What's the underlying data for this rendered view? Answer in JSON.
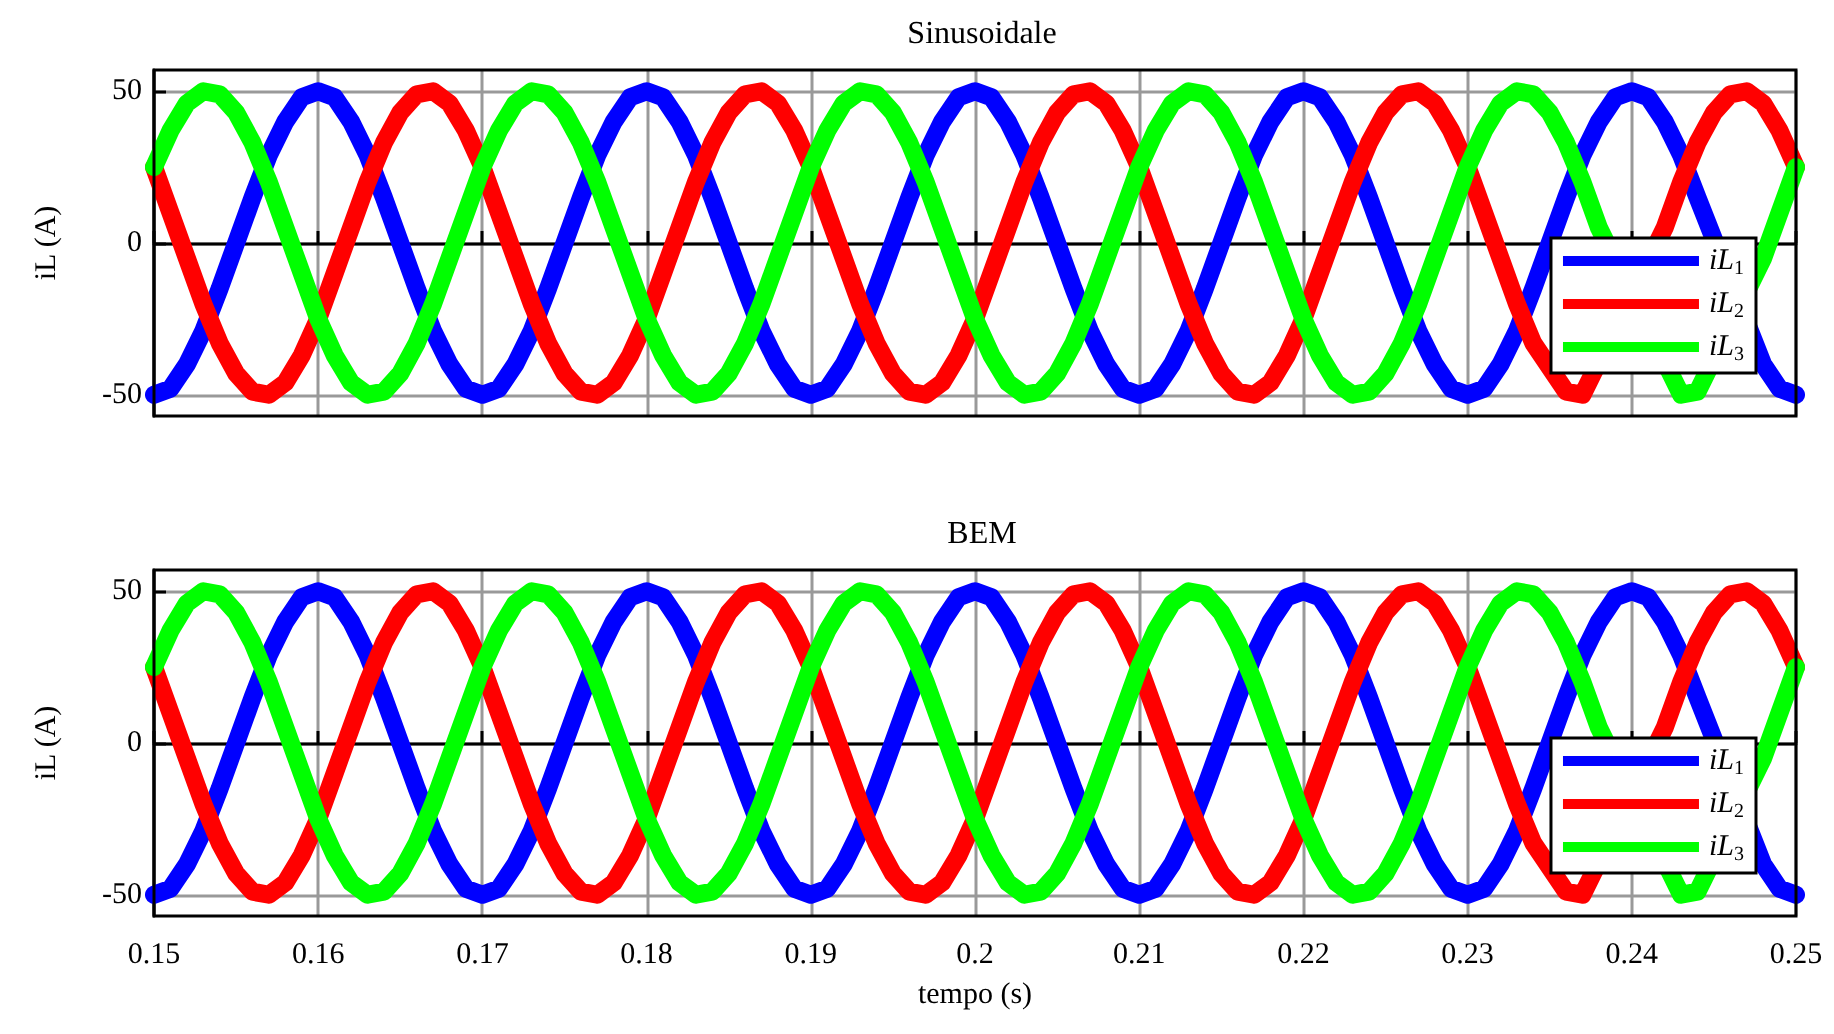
{
  "chart_data": [
    {
      "type": "line",
      "title": "Sinusoidale",
      "ylabel": "iL (A)",
      "xlim": [
        0.15,
        0.25
      ],
      "xticks": [
        0.15,
        0.16,
        0.17,
        0.18,
        0.19,
        0.2,
        0.21,
        0.22,
        0.23,
        0.24,
        0.25
      ],
      "ylim": [
        -57,
        57
      ],
      "yticks": [
        -50,
        0,
        50
      ],
      "grid": true,
      "legend": "bottom right",
      "tick_labels": "y",
      "marker": "none",
      "line_style": "solid",
      "x": [
        0.15,
        0.151,
        0.152,
        0.153,
        0.154,
        0.155,
        0.156,
        0.157,
        0.158,
        0.159,
        0.16,
        0.161,
        0.162,
        0.163,
        0.164,
        0.165,
        0.166,
        0.167,
        0.168,
        0.169,
        0.17,
        0.171,
        0.172,
        0.173,
        0.174,
        0.175,
        0.176,
        0.177,
        0.178,
        0.179,
        0.18,
        0.181,
        0.182,
        0.183,
        0.184,
        0.185,
        0.186,
        0.187,
        0.188,
        0.189,
        0.19,
        0.191,
        0.192,
        0.193,
        0.194,
        0.195,
        0.196,
        0.197,
        0.198,
        0.199,
        0.2,
        0.201,
        0.202,
        0.203,
        0.204,
        0.205,
        0.206,
        0.207,
        0.208,
        0.209,
        0.21,
        0.211,
        0.212,
        0.213,
        0.214,
        0.215,
        0.216,
        0.217,
        0.218,
        0.219,
        0.22,
        0.221,
        0.222,
        0.223,
        0.224,
        0.225,
        0.226,
        0.227,
        0.228,
        0.229,
        0.23,
        0.231,
        0.232,
        0.233,
        0.234,
        0.235,
        0.236,
        0.237,
        0.238,
        0.239,
        0.24,
        0.241,
        0.242,
        0.243,
        0.244,
        0.245,
        0.246,
        0.247,
        0.248,
        0.249,
        0.25
      ],
      "series": [
        {
          "name": "iL$_{1}$",
          "color": "#0000ff",
          "values": [
            -50,
            -48,
            -40,
            -29,
            -15,
            0,
            15,
            29,
            40,
            48,
            50,
            48,
            40,
            29,
            15,
            0,
            -15,
            -29,
            -40,
            -48,
            -50,
            -48,
            -40,
            -29,
            -15,
            0,
            15,
            29,
            40,
            48,
            50,
            48,
            40,
            29,
            15,
            0,
            -15,
            -29,
            -40,
            -48,
            -50,
            -48,
            -40,
            -29,
            -15,
            0,
            15,
            29,
            40,
            48,
            50,
            48,
            40,
            29,
            15,
            0,
            -15,
            -29,
            -40,
            -48,
            -50,
            -48,
            -40,
            -29,
            -15,
            0,
            15,
            29,
            40,
            48,
            50,
            48,
            40,
            29,
            15,
            0,
            -15,
            -29,
            -40,
            -48,
            -50,
            -48,
            -40,
            -29,
            -15,
            0,
            15,
            29,
            40,
            48,
            50,
            48,
            40,
            29,
            15,
            null,
            null,
            null,
            -40,
            -48,
            -50
          ]
        },
        {
          "name": "iL$_{2}$",
          "color": "#ff0000",
          "values": [
            25,
            10,
            -5,
            -20,
            -33,
            -43,
            -49,
            -50,
            -46,
            -37,
            -25,
            -10,
            5,
            20,
            33,
            43,
            49,
            50,
            46,
            37,
            25,
            10,
            -5,
            -20,
            -33,
            -43,
            -49,
            -50,
            -46,
            -37,
            -25,
            -10,
            5,
            20,
            33,
            43,
            49,
            50,
            46,
            37,
            25,
            10,
            -5,
            -20,
            -33,
            -43,
            -49,
            -50,
            -46,
            -37,
            -25,
            -10,
            5,
            20,
            33,
            43,
            49,
            50,
            46,
            37,
            25,
            10,
            -5,
            -20,
            -33,
            -43,
            -49,
            -50,
            -46,
            -37,
            -25,
            -10,
            5,
            20,
            33,
            43,
            49,
            50,
            46,
            37,
            25,
            10,
            -5,
            -20,
            -33,
            null,
            -49,
            -50,
            null,
            null,
            null,
            null,
            5,
            20,
            33,
            43,
            49,
            50,
            46,
            37,
            25
          ]
        },
        {
          "name": "iL$_{3}$",
          "color": "#00ff00",
          "values": [
            25,
            37,
            46,
            50,
            49,
            43,
            33,
            20,
            5,
            -10,
            -25,
            -37,
            -46,
            -50,
            -49,
            -43,
            -33,
            -20,
            -5,
            10,
            25,
            37,
            46,
            50,
            49,
            43,
            33,
            20,
            5,
            -10,
            -25,
            -37,
            -46,
            -50,
            -49,
            -43,
            -33,
            -20,
            -5,
            10,
            25,
            37,
            46,
            50,
            49,
            43,
            33,
            20,
            5,
            -10,
            -25,
            -37,
            -46,
            -50,
            -49,
            -43,
            -33,
            -20,
            -5,
            10,
            25,
            37,
            46,
            50,
            49,
            43,
            33,
            20,
            5,
            -10,
            -25,
            -37,
            -46,
            -50,
            -49,
            -43,
            -33,
            -20,
            -5,
            10,
            25,
            37,
            46,
            50,
            49,
            43,
            33,
            20,
            5,
            null,
            null,
            null,
            null,
            -50,
            -49,
            null,
            null,
            null,
            -5,
            10,
            25
          ]
        }
      ]
    },
    {
      "type": "line",
      "title": "BEM",
      "xlabel": "tempo (s)",
      "ylabel": "iL (A)",
      "xlim": [
        0.15,
        0.25
      ],
      "xticks": [
        0.15,
        0.16,
        0.17,
        0.18,
        0.19,
        0.2,
        0.21,
        0.22,
        0.23,
        0.24,
        0.25
      ],
      "ylim": [
        -57,
        57
      ],
      "yticks": [
        -50,
        0,
        50
      ],
      "grid": true,
      "legend": "bottom right",
      "marker": "none",
      "line_style": "solid",
      "x": [
        0.15,
        0.151,
        0.152,
        0.153,
        0.154,
        0.155,
        0.156,
        0.157,
        0.158,
        0.159,
        0.16,
        0.161,
        0.162,
        0.163,
        0.164,
        0.165,
        0.166,
        0.167,
        0.168,
        0.169,
        0.17,
        0.171,
        0.172,
        0.173,
        0.174,
        0.175,
        0.176,
        0.177,
        0.178,
        0.179,
        0.18,
        0.181,
        0.182,
        0.183,
        0.184,
        0.185,
        0.186,
        0.187,
        0.188,
        0.189,
        0.19,
        0.191,
        0.192,
        0.193,
        0.194,
        0.195,
        0.196,
        0.197,
        0.198,
        0.199,
        0.2,
        0.201,
        0.202,
        0.203,
        0.204,
        0.205,
        0.206,
        0.207,
        0.208,
        0.209,
        0.21,
        0.211,
        0.212,
        0.213,
        0.214,
        0.215,
        0.216,
        0.217,
        0.218,
        0.219,
        0.22,
        0.221,
        0.222,
        0.223,
        0.224,
        0.225,
        0.226,
        0.227,
        0.228,
        0.229,
        0.23,
        0.231,
        0.232,
        0.233,
        0.234,
        0.235,
        0.236,
        0.237,
        0.238,
        0.239,
        0.24,
        0.241,
        0.242,
        0.243,
        0.244,
        0.245,
        0.246,
        0.247,
        0.248,
        0.249,
        0.25
      ],
      "series": [
        {
          "name": "iL$_{1}$",
          "color": "#0000ff",
          "values": [
            -50,
            -48,
            -40,
            -29,
            -15,
            0,
            15,
            29,
            40,
            48,
            50,
            48,
            40,
            29,
            15,
            0,
            -15,
            -29,
            -40,
            -48,
            -50,
            -48,
            -40,
            -29,
            -15,
            0,
            15,
            29,
            40,
            48,
            50,
            48,
            40,
            29,
            15,
            0,
            -15,
            -29,
            -40,
            -48,
            -50,
            -48,
            -40,
            -29,
            -15,
            0,
            15,
            29,
            40,
            48,
            50,
            48,
            40,
            29,
            15,
            0,
            -15,
            -29,
            -40,
            -48,
            -50,
            -48,
            -40,
            -29,
            -15,
            0,
            15,
            29,
            40,
            48,
            50,
            48,
            40,
            29,
            15,
            0,
            -15,
            -29,
            -40,
            -48,
            -50,
            -48,
            -40,
            -29,
            -15,
            0,
            15,
            29,
            40,
            48,
            50,
            48,
            40,
            29,
            15,
            null,
            null,
            null,
            -40,
            -48,
            -50
          ]
        },
        {
          "name": "iL$_{2}$",
          "color": "#ff0000",
          "values": [
            25,
            10,
            -5,
            -20,
            -33,
            -43,
            -49,
            -50,
            -46,
            -37,
            -25,
            -10,
            5,
            20,
            33,
            43,
            49,
            50,
            46,
            37,
            25,
            10,
            -5,
            -20,
            -33,
            -43,
            -49,
            -50,
            -46,
            -37,
            -25,
            -10,
            5,
            20,
            33,
            43,
            49,
            50,
            46,
            37,
            25,
            10,
            -5,
            -20,
            -33,
            -43,
            -49,
            -50,
            -46,
            -37,
            -25,
            -10,
            5,
            20,
            33,
            43,
            49,
            50,
            46,
            37,
            25,
            10,
            -5,
            -20,
            -33,
            -43,
            -49,
            -50,
            -46,
            -37,
            -25,
            -10,
            5,
            20,
            33,
            43,
            49,
            50,
            46,
            37,
            25,
            10,
            -5,
            -20,
            -33,
            null,
            -49,
            -50,
            null,
            null,
            null,
            null,
            5,
            20,
            33,
            43,
            49,
            50,
            46,
            37,
            25
          ]
        },
        {
          "name": "iL$_{3}$",
          "color": "#00ff00",
          "values": [
            25,
            37,
            46,
            50,
            49,
            43,
            33,
            20,
            5,
            -10,
            -25,
            -37,
            -46,
            -50,
            -49,
            -43,
            -33,
            -20,
            -5,
            10,
            25,
            37,
            46,
            50,
            49,
            43,
            33,
            20,
            5,
            -10,
            -25,
            -37,
            -46,
            -50,
            -49,
            -43,
            -33,
            -20,
            -5,
            10,
            25,
            37,
            46,
            50,
            49,
            43,
            33,
            20,
            5,
            -10,
            -25,
            -37,
            -46,
            -50,
            -49,
            -43,
            -33,
            -20,
            -5,
            10,
            25,
            37,
            46,
            50,
            49,
            43,
            33,
            20,
            5,
            -10,
            -25,
            -37,
            -46,
            -50,
            -49,
            -43,
            -33,
            -20,
            -5,
            10,
            25,
            37,
            46,
            50,
            49,
            43,
            33,
            20,
            5,
            null,
            null,
            null,
            null,
            -50,
            -49,
            null,
            null,
            null,
            -5,
            10,
            25
          ]
        }
      ]
    }
  ]
}
